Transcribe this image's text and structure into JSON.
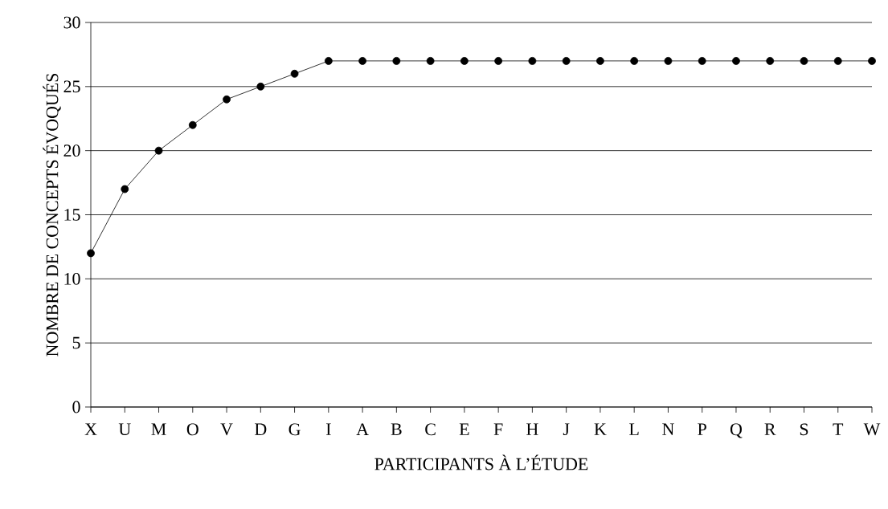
{
  "chart_data": {
    "type": "line",
    "xlabel": "PARTICIPANTS À L’ÉTUDE",
    "ylabel": "NOMBRE DE CONCEPTS ÉVOQUÉS",
    "categories": [
      "X",
      "U",
      "M",
      "O",
      "V",
      "D",
      "G",
      "I",
      "A",
      "B",
      "C",
      "E",
      "F",
      "H",
      "J",
      "K",
      "L",
      "N",
      "P",
      "Q",
      "R",
      "S",
      "T",
      "W"
    ],
    "values": [
      12,
      17,
      20,
      22,
      24,
      25,
      26,
      27,
      27,
      27,
      27,
      27,
      27,
      27,
      27,
      27,
      27,
      27,
      27,
      27,
      27,
      27,
      27,
      27
    ],
    "color": "#000000",
    "marker": "circle",
    "line_style": "solid",
    "ylim": [
      0,
      30
    ],
    "yticks": [
      0,
      5,
      10,
      15,
      20,
      25,
      30
    ],
    "grid": "y"
  }
}
